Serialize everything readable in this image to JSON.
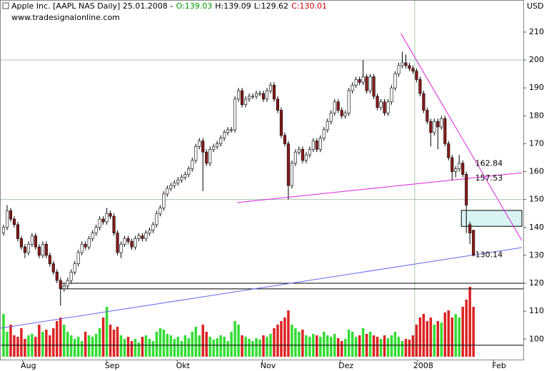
{
  "chart_data": {
    "type": "candlestick",
    "title": "Apple Inc. [AAPL NAS  Daily] 25.01.2008 -",
    "ohlc_labels": [
      "O:139.03",
      "H:139.09",
      "L:129.62",
      "C:130.01"
    ],
    "ohlc_label_colors": [
      "#009900",
      "#000000",
      "#000000",
      "#cc0000"
    ],
    "subtitle": "www.tradesignalonline.com",
    "y_unit": "USD",
    "xlim": [
      -1,
      146
    ],
    "ylim": [
      92.65,
      221.5
    ],
    "vlim": [
      0,
      100
    ],
    "yticks": [
      100,
      110,
      120,
      130,
      140,
      150,
      160,
      170,
      180,
      190,
      200,
      210
    ],
    "xticks": [
      {
        "value": 7,
        "label": "Aug"
      },
      {
        "value": 30.5,
        "label": "Sep"
      },
      {
        "value": 50.4,
        "label": "Okt"
      },
      {
        "value": 74.3,
        "label": "Nov"
      },
      {
        "value": 96.2,
        "label": "Dez"
      },
      {
        "value": 117.9,
        "label": "2008"
      },
      {
        "value": 139.2,
        "label": "Feb"
      }
    ],
    "major_grid": [
      150,
      200
    ],
    "year_line": 115.5,
    "up_color": "#ffffff",
    "down_color": "#8b1a1a",
    "volume_up_color": "#33dd33",
    "volume_down_color": "#dd2222",
    "open": [
      138,
      140,
      146,
      143,
      141,
      136,
      133,
      131,
      134,
      137,
      133,
      130,
      134,
      130,
      127,
      124,
      121,
      118,
      119,
      121,
      124,
      127,
      131,
      134,
      133,
      136,
      138,
      140,
      143,
      142,
      145,
      144,
      138,
      131,
      134,
      136,
      135,
      133,
      136,
      137,
      136,
      138,
      139,
      141,
      145,
      147,
      152,
      154,
      155,
      156,
      157,
      158,
      159,
      161,
      164,
      169,
      171,
      167,
      163,
      168,
      169,
      170,
      172,
      174,
      175,
      175,
      186,
      189,
      184,
      186,
      187,
      187,
      188,
      188,
      186,
      189,
      191,
      186,
      182,
      173,
      170,
      155,
      163,
      167,
      168,
      164,
      166,
      168,
      171,
      168,
      172,
      175,
      178,
      181,
      185,
      182,
      180,
      181,
      189,
      191,
      193,
      192,
      194,
      189,
      194,
      187,
      183,
      185,
      181,
      185,
      190,
      195,
      198,
      199,
      198,
      197,
      196,
      193,
      188,
      182,
      178,
      174,
      178,
      176,
      179,
      170,
      165,
      160,
      161,
      163,
      159,
      141,
      139.03
    ],
    "high": [
      141,
      148,
      147,
      144,
      142,
      137,
      134,
      135,
      138,
      138,
      134,
      135,
      135,
      131,
      128,
      125,
      122,
      120,
      122,
      125,
      128,
      132,
      135,
      135,
      137,
      139,
      141,
      144,
      144,
      147,
      146,
      145,
      139,
      135,
      137,
      137,
      136,
      137,
      138,
      138,
      139,
      140,
      142,
      146,
      148,
      153,
      155,
      156,
      157,
      158,
      159,
      160,
      162,
      165,
      170,
      172,
      172,
      168,
      169,
      170,
      171,
      173,
      175,
      176,
      176,
      187,
      190,
      190,
      187,
      188,
      188,
      189,
      189,
      189,
      190,
      192,
      192,
      187,
      183,
      174,
      171,
      164,
      168,
      169,
      169,
      167,
      169,
      172,
      172,
      173,
      176,
      179,
      182,
      186,
      186,
      183,
      182,
      190,
      192,
      194,
      194,
      200,
      195,
      195,
      195,
      188,
      186,
      186,
      186,
      191,
      196,
      199,
      203,
      202,
      199,
      198,
      197,
      194,
      189,
      183,
      179,
      179,
      179,
      180,
      180,
      171,
      166,
      162,
      166,
      164,
      160,
      142,
      139.09
    ],
    "low": [
      137,
      139,
      142,
      140,
      135,
      132,
      129,
      130,
      133,
      132,
      129,
      129,
      129,
      126,
      123,
      120,
      112,
      117,
      118,
      120,
      123,
      126,
      130,
      132,
      132,
      135,
      137,
      139,
      141,
      141,
      143,
      137,
      130,
      129,
      133,
      134,
      132,
      132,
      135,
      135,
      135,
      137,
      138,
      140,
      144,
      146,
      151,
      153,
      154,
      155,
      156,
      157,
      158,
      160,
      163,
      168,
      153,
      162,
      162,
      167,
      168,
      169,
      171,
      173,
      174,
      174,
      185,
      183,
      183,
      185,
      186,
      186,
      187,
      185,
      185,
      188,
      185,
      181,
      172,
      169,
      150,
      154,
      162,
      166,
      163,
      163,
      165,
      167,
      167,
      167,
      171,
      174,
      177,
      180,
      181,
      179,
      179,
      180,
      188,
      190,
      191,
      191,
      188,
      188,
      186,
      182,
      182,
      180,
      180,
      184,
      189,
      194,
      197,
      197,
      196,
      195,
      192,
      187,
      181,
      177,
      169,
      173,
      168,
      175,
      169,
      164,
      157,
      158,
      160,
      158,
      138,
      134,
      129.62
    ],
    "close": [
      140,
      146,
      143,
      141,
      136,
      133,
      131,
      134,
      137,
      133,
      130,
      134,
      130,
      127,
      124,
      121,
      118,
      119,
      121,
      124,
      127,
      131,
      134,
      133,
      136,
      138,
      140,
      143,
      142,
      145,
      144,
      138,
      131,
      134,
      136,
      135,
      133,
      136,
      137,
      136,
      138,
      139,
      141,
      145,
      147,
      152,
      154,
      155,
      156,
      157,
      158,
      159,
      161,
      164,
      169,
      171,
      167,
      163,
      168,
      169,
      170,
      172,
      174,
      175,
      175,
      186,
      189,
      184,
      186,
      187,
      187,
      188,
      188,
      186,
      189,
      191,
      186,
      182,
      173,
      170,
      155,
      163,
      167,
      168,
      164,
      166,
      168,
      171,
      168,
      172,
      175,
      178,
      181,
      185,
      182,
      180,
      181,
      189,
      191,
      193,
      192,
      194,
      189,
      194,
      187,
      183,
      185,
      181,
      185,
      190,
      195,
      198,
      199,
      198,
      197,
      196,
      193,
      188,
      182,
      178,
      174,
      178,
      176,
      179,
      170,
      165,
      160,
      161,
      163,
      159,
      148,
      138,
      130.01
    ],
    "volume": [
      60,
      35,
      45,
      30,
      28,
      40,
      25,
      30,
      32,
      28,
      45,
      35,
      38,
      30,
      40,
      50,
      55,
      45,
      35,
      30,
      25,
      28,
      22,
      35,
      30,
      28,
      32,
      40,
      55,
      70,
      45,
      38,
      42,
      30,
      25,
      28,
      22,
      25,
      20,
      28,
      30,
      25,
      22,
      35,
      40,
      38,
      32,
      30,
      25,
      28,
      22,
      30,
      26,
      35,
      42,
      30,
      45,
      35,
      28,
      24,
      26,
      30,
      28,
      22,
      35,
      50,
      45,
      30,
      28,
      25,
      22,
      26,
      24,
      30,
      28,
      32,
      40,
      45,
      50,
      55,
      65,
      45,
      40,
      35,
      38,
      30,
      28,
      32,
      30,
      28,
      35,
      30,
      28,
      32,
      26,
      22,
      25,
      38,
      35,
      28,
      30,
      40,
      32,
      35,
      30,
      28,
      25,
      30,
      26,
      30,
      35,
      28,
      22,
      25,
      24,
      30,
      45,
      55,
      60,
      50,
      55,
      45,
      50,
      48,
      62,
      65,
      55,
      60,
      55,
      70,
      80,
      98,
      70
    ],
    "hlines": [
      120,
      118,
      97.8
    ],
    "trendlines": [
      {
        "color": "#dd22dd",
        "points": [
          [
            65.6,
            148.9
          ],
          [
            145.6,
            159.6
          ]
        ]
      },
      {
        "color": "#dd22dd",
        "points": [
          [
            111.6,
            209.5
          ],
          [
            145.6,
            135.3
          ]
        ]
      },
      {
        "color": "#6666ee",
        "points": [
          [
            -1,
            103.9
          ],
          [
            145.6,
            132.8
          ]
        ]
      }
    ],
    "levels": [
      {
        "value": 162.84,
        "color": "#cc33cc"
      },
      {
        "value": 157.53,
        "color": "#cc33cc"
      },
      {
        "value": 130.14,
        "color": "#8877dd"
      }
    ],
    "zone": {
      "x": [
        128.6,
        145.6
      ],
      "y": [
        140.4,
        146.1
      ],
      "color": "#d8f4f4"
    }
  }
}
